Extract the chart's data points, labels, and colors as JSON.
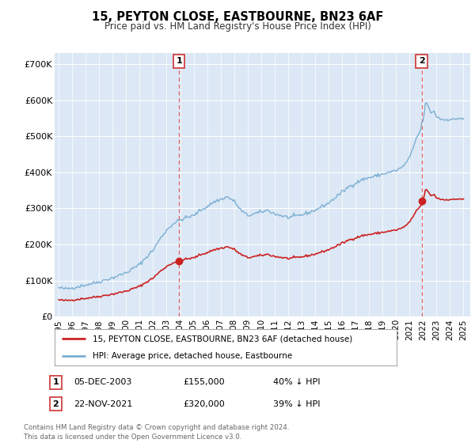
{
  "title": "15, PEYTON CLOSE, EASTBOURNE, BN23 6AF",
  "subtitle": "Price paid vs. HM Land Registry's House Price Index (HPI)",
  "legend_line1": "15, PEYTON CLOSE, EASTBOURNE, BN23 6AF (detached house)",
  "legend_line2": "HPI: Average price, detached house, Eastbourne",
  "annotation1_label": "1",
  "annotation1_date": "05-DEC-2003",
  "annotation1_price": "£155,000",
  "annotation1_pct": "40% ↓ HPI",
  "annotation2_label": "2",
  "annotation2_date": "22-NOV-2021",
  "annotation2_price": "£320,000",
  "annotation2_pct": "39% ↓ HPI",
  "footer": "Contains HM Land Registry data © Crown copyright and database right 2024.\nThis data is licensed under the Open Government Licence v3.0.",
  "hpi_color": "#7bafd4",
  "price_color": "#cc2222",
  "vline_color": "#e06060",
  "background_color": "#ffffff",
  "plot_bg_color": "#dce8f5",
  "ylabel_ticks": [
    "£0",
    "£100K",
    "£200K",
    "£300K",
    "£400K",
    "£500K",
    "£600K",
    "£700K"
  ],
  "ytick_values": [
    0,
    100000,
    200000,
    300000,
    400000,
    500000,
    600000,
    700000
  ],
  "ylim": [
    0,
    730000
  ],
  "xlim_left": 1994.7,
  "xlim_right": 2025.5,
  "sale1_x": 2003.92,
  "sale1_y": 155000,
  "sale2_x": 2021.9,
  "sale2_y": 320000
}
